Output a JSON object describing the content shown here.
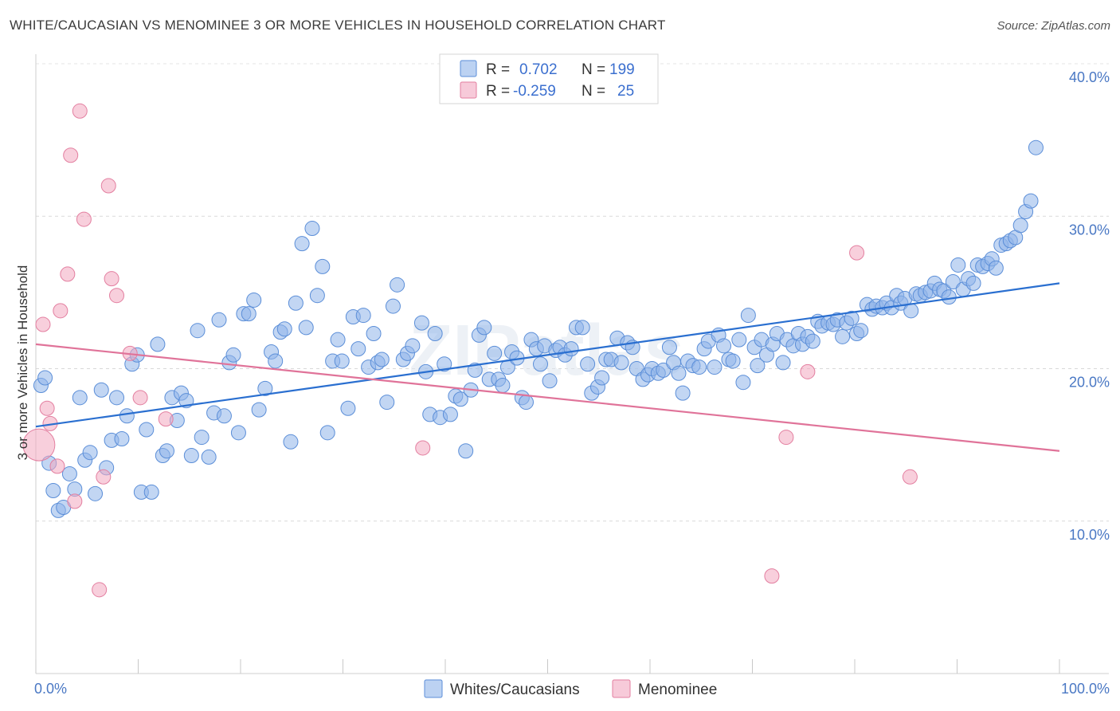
{
  "header": {
    "title": "WHITE/CAUCASIAN VS MENOMINEE 3 OR MORE VEHICLES IN HOUSEHOLD CORRELATION CHART",
    "source": "Source: ZipAtlas.com"
  },
  "watermark": "ZIPatlas",
  "legend": {
    "rows": [
      {
        "r_label": "R =",
        "r_value": "0.702",
        "n_label": "N =",
        "n_value": "199",
        "color": "#8fb4ea"
      },
      {
        "r_label": "R =",
        "r_value": "-0.259",
        "n_label": "N =",
        "n_value": "25",
        "color": "#f2a7c0"
      }
    ]
  },
  "chart_data": {
    "type": "scatter",
    "title": "WHITE/CAUCASIAN VS MENOMINEE 3 OR MORE VEHICLES IN HOUSEHOLD CORRELATION CHART",
    "xlabel": "",
    "ylabel": "3 or more Vehicles in Household",
    "xlim": [
      0,
      100
    ],
    "ylim": [
      0,
      40
    ],
    "x_tick_labels": [
      "0.0%",
      "100.0%"
    ],
    "y_ticks": [
      10,
      20,
      30,
      40
    ],
    "y_tick_labels": [
      "10.0%",
      "20.0%",
      "30.0%",
      "40.0%"
    ],
    "grid": "horizontal dashed",
    "legend_position": "top-center",
    "series": [
      {
        "name": "Whites/Caucasians",
        "color": "#8fb4ea",
        "edge": "#5b8ed8",
        "trend": [
          [
            0,
            16.2
          ],
          [
            100,
            25.6
          ]
        ],
        "trend_color": "#2a6fd0",
        "points": [
          [
            0.5,
            18.9
          ],
          [
            0.9,
            19.4
          ],
          [
            1.3,
            13.8
          ],
          [
            1.7,
            12.0
          ],
          [
            2.2,
            10.7
          ],
          [
            2.7,
            10.9
          ],
          [
            3.3,
            13.1
          ],
          [
            3.8,
            12.1
          ],
          [
            4.3,
            18.1
          ],
          [
            4.8,
            14.0
          ],
          [
            5.3,
            14.5
          ],
          [
            5.8,
            11.8
          ],
          [
            6.4,
            18.6
          ],
          [
            6.9,
            13.5
          ],
          [
            7.4,
            15.3
          ],
          [
            7.9,
            18.1
          ],
          [
            8.4,
            15.4
          ],
          [
            8.9,
            16.9
          ],
          [
            9.4,
            20.3
          ],
          [
            9.9,
            20.9
          ],
          [
            10.3,
            11.9
          ],
          [
            10.8,
            16.0
          ],
          [
            11.3,
            11.9
          ],
          [
            11.9,
            21.6
          ],
          [
            12.4,
            14.3
          ],
          [
            12.8,
            14.6
          ],
          [
            13.3,
            18.1
          ],
          [
            13.8,
            16.6
          ],
          [
            14.2,
            18.4
          ],
          [
            14.7,
            17.9
          ],
          [
            15.2,
            14.3
          ],
          [
            15.8,
            22.5
          ],
          [
            16.2,
            15.5
          ],
          [
            16.9,
            14.2
          ],
          [
            17.4,
            17.1
          ],
          [
            17.9,
            23.2
          ],
          [
            18.4,
            16.9
          ],
          [
            18.9,
            20.4
          ],
          [
            19.3,
            20.9
          ],
          [
            19.8,
            15.8
          ],
          [
            20.3,
            23.6
          ],
          [
            20.8,
            23.6
          ],
          [
            21.3,
            24.5
          ],
          [
            21.8,
            17.3
          ],
          [
            22.4,
            18.7
          ],
          [
            23.0,
            21.1
          ],
          [
            23.4,
            20.5
          ],
          [
            23.9,
            22.4
          ],
          [
            24.3,
            22.6
          ],
          [
            24.9,
            15.2
          ],
          [
            25.4,
            24.3
          ],
          [
            26.0,
            28.2
          ],
          [
            26.4,
            22.7
          ],
          [
            27.0,
            29.2
          ],
          [
            27.5,
            24.8
          ],
          [
            28.0,
            26.7
          ],
          [
            28.5,
            15.8
          ],
          [
            29.0,
            20.5
          ],
          [
            29.5,
            21.9
          ],
          [
            29.9,
            20.5
          ],
          [
            30.5,
            17.4
          ],
          [
            31.0,
            23.4
          ],
          [
            31.5,
            21.3
          ],
          [
            32.0,
            23.5
          ],
          [
            32.5,
            20.1
          ],
          [
            33.0,
            22.3
          ],
          [
            33.4,
            20.4
          ],
          [
            33.8,
            20.6
          ],
          [
            34.3,
            17.8
          ],
          [
            34.9,
            24.1
          ],
          [
            35.3,
            25.5
          ],
          [
            35.9,
            20.6
          ],
          [
            36.3,
            21.0
          ],
          [
            36.8,
            21.5
          ],
          [
            37.7,
            23.0
          ],
          [
            38.1,
            19.8
          ],
          [
            38.5,
            17.0
          ],
          [
            39.0,
            22.3
          ],
          [
            39.5,
            16.8
          ],
          [
            39.9,
            20.3
          ],
          [
            40.5,
            17.0
          ],
          [
            41.0,
            18.2
          ],
          [
            41.5,
            18.0
          ],
          [
            42.0,
            14.6
          ],
          [
            42.5,
            18.6
          ],
          [
            42.9,
            19.9
          ],
          [
            43.3,
            22.2
          ],
          [
            43.8,
            22.7
          ],
          [
            44.3,
            19.3
          ],
          [
            44.8,
            21.0
          ],
          [
            45.2,
            19.3
          ],
          [
            45.6,
            18.9
          ],
          [
            46.1,
            20.1
          ],
          [
            46.5,
            21.1
          ],
          [
            47.0,
            20.7
          ],
          [
            47.5,
            18.1
          ],
          [
            47.9,
            17.8
          ],
          [
            48.4,
            21.9
          ],
          [
            48.9,
            21.3
          ],
          [
            49.3,
            20.3
          ],
          [
            49.7,
            21.5
          ],
          [
            50.2,
            19.2
          ],
          [
            50.8,
            21.2
          ],
          [
            51.2,
            21.4
          ],
          [
            51.7,
            20.9
          ],
          [
            52.3,
            21.3
          ],
          [
            52.8,
            22.7
          ],
          [
            53.4,
            22.7
          ],
          [
            53.9,
            20.3
          ],
          [
            54.3,
            18.4
          ],
          [
            54.9,
            18.8
          ],
          [
            55.3,
            19.4
          ],
          [
            55.7,
            20.6
          ],
          [
            56.2,
            20.6
          ],
          [
            56.8,
            22.0
          ],
          [
            57.2,
            20.4
          ],
          [
            57.8,
            21.7
          ],
          [
            58.3,
            21.4
          ],
          [
            58.7,
            20.0
          ],
          [
            59.3,
            19.3
          ],
          [
            59.8,
            19.6
          ],
          [
            60.2,
            20.0
          ],
          [
            60.8,
            19.7
          ],
          [
            61.3,
            19.9
          ],
          [
            61.9,
            21.4
          ],
          [
            62.3,
            20.4
          ],
          [
            62.8,
            19.7
          ],
          [
            63.2,
            18.4
          ],
          [
            63.7,
            20.5
          ],
          [
            64.2,
            20.2
          ],
          [
            64.8,
            20.1
          ],
          [
            65.3,
            21.3
          ],
          [
            65.7,
            21.8
          ],
          [
            66.3,
            20.1
          ],
          [
            66.7,
            22.2
          ],
          [
            67.2,
            21.5
          ],
          [
            67.7,
            20.6
          ],
          [
            68.1,
            20.5
          ],
          [
            68.7,
            21.9
          ],
          [
            69.1,
            19.1
          ],
          [
            69.6,
            23.5
          ],
          [
            70.2,
            21.4
          ],
          [
            70.5,
            20.2
          ],
          [
            70.9,
            21.9
          ],
          [
            71.4,
            20.9
          ],
          [
            72.0,
            21.6
          ],
          [
            72.4,
            22.3
          ],
          [
            73.0,
            20.4
          ],
          [
            73.4,
            21.9
          ],
          [
            74.0,
            21.5
          ],
          [
            74.5,
            22.3
          ],
          [
            74.9,
            21.6
          ],
          [
            75.4,
            22.1
          ],
          [
            75.9,
            21.8
          ],
          [
            76.4,
            23.1
          ],
          [
            76.8,
            22.8
          ],
          [
            77.4,
            23.0
          ],
          [
            77.9,
            22.9
          ],
          [
            78.3,
            23.2
          ],
          [
            78.8,
            22.1
          ],
          [
            79.2,
            23.0
          ],
          [
            79.7,
            23.3
          ],
          [
            80.2,
            22.3
          ],
          [
            80.6,
            22.5
          ],
          [
            81.2,
            24.2
          ],
          [
            81.7,
            23.9
          ],
          [
            82.1,
            24.1
          ],
          [
            82.7,
            24.0
          ],
          [
            83.1,
            24.3
          ],
          [
            83.6,
            24.0
          ],
          [
            84.1,
            24.8
          ],
          [
            84.5,
            24.3
          ],
          [
            84.9,
            24.6
          ],
          [
            85.5,
            23.8
          ],
          [
            86.0,
            24.9
          ],
          [
            86.4,
            24.8
          ],
          [
            86.9,
            25.0
          ],
          [
            87.4,
            25.1
          ],
          [
            87.8,
            25.6
          ],
          [
            88.3,
            25.2
          ],
          [
            88.7,
            25.1
          ],
          [
            89.2,
            24.7
          ],
          [
            89.6,
            25.7
          ],
          [
            90.1,
            26.8
          ],
          [
            90.6,
            25.2
          ],
          [
            91.1,
            25.9
          ],
          [
            91.6,
            25.6
          ],
          [
            92.0,
            26.8
          ],
          [
            92.5,
            26.7
          ],
          [
            93.0,
            26.9
          ],
          [
            93.4,
            27.2
          ],
          [
            93.8,
            26.6
          ],
          [
            94.3,
            28.1
          ],
          [
            94.8,
            28.2
          ],
          [
            95.2,
            28.4
          ],
          [
            95.7,
            28.6
          ],
          [
            96.2,
            29.4
          ],
          [
            96.7,
            30.3
          ],
          [
            97.2,
            31.0
          ],
          [
            97.7,
            34.5
          ]
        ]
      },
      {
        "name": "Menominee",
        "color": "#f2a7c0",
        "edge": "#e37fa0",
        "trend": [
          [
            0,
            21.6
          ],
          [
            100,
            14.6
          ]
        ],
        "trend_color": "#e07399",
        "points": [
          [
            0.3,
            15.0
          ],
          [
            0.7,
            22.9
          ],
          [
            1.1,
            17.4
          ],
          [
            1.4,
            16.4
          ],
          [
            2.1,
            13.6
          ],
          [
            2.4,
            23.8
          ],
          [
            3.1,
            26.2
          ],
          [
            3.4,
            34.0
          ],
          [
            3.8,
            11.3
          ],
          [
            4.3,
            36.9
          ],
          [
            4.7,
            29.8
          ],
          [
            6.2,
            5.5
          ],
          [
            6.6,
            12.9
          ],
          [
            7.1,
            32.0
          ],
          [
            7.4,
            25.9
          ],
          [
            7.9,
            24.8
          ],
          [
            9.2,
            21.0
          ],
          [
            10.2,
            18.1
          ],
          [
            12.7,
            16.7
          ],
          [
            37.8,
            14.8
          ],
          [
            71.9,
            6.4
          ],
          [
            73.3,
            15.5
          ],
          [
            75.4,
            19.8
          ],
          [
            80.2,
            27.6
          ],
          [
            85.4,
            12.9
          ]
        ]
      }
    ]
  }
}
